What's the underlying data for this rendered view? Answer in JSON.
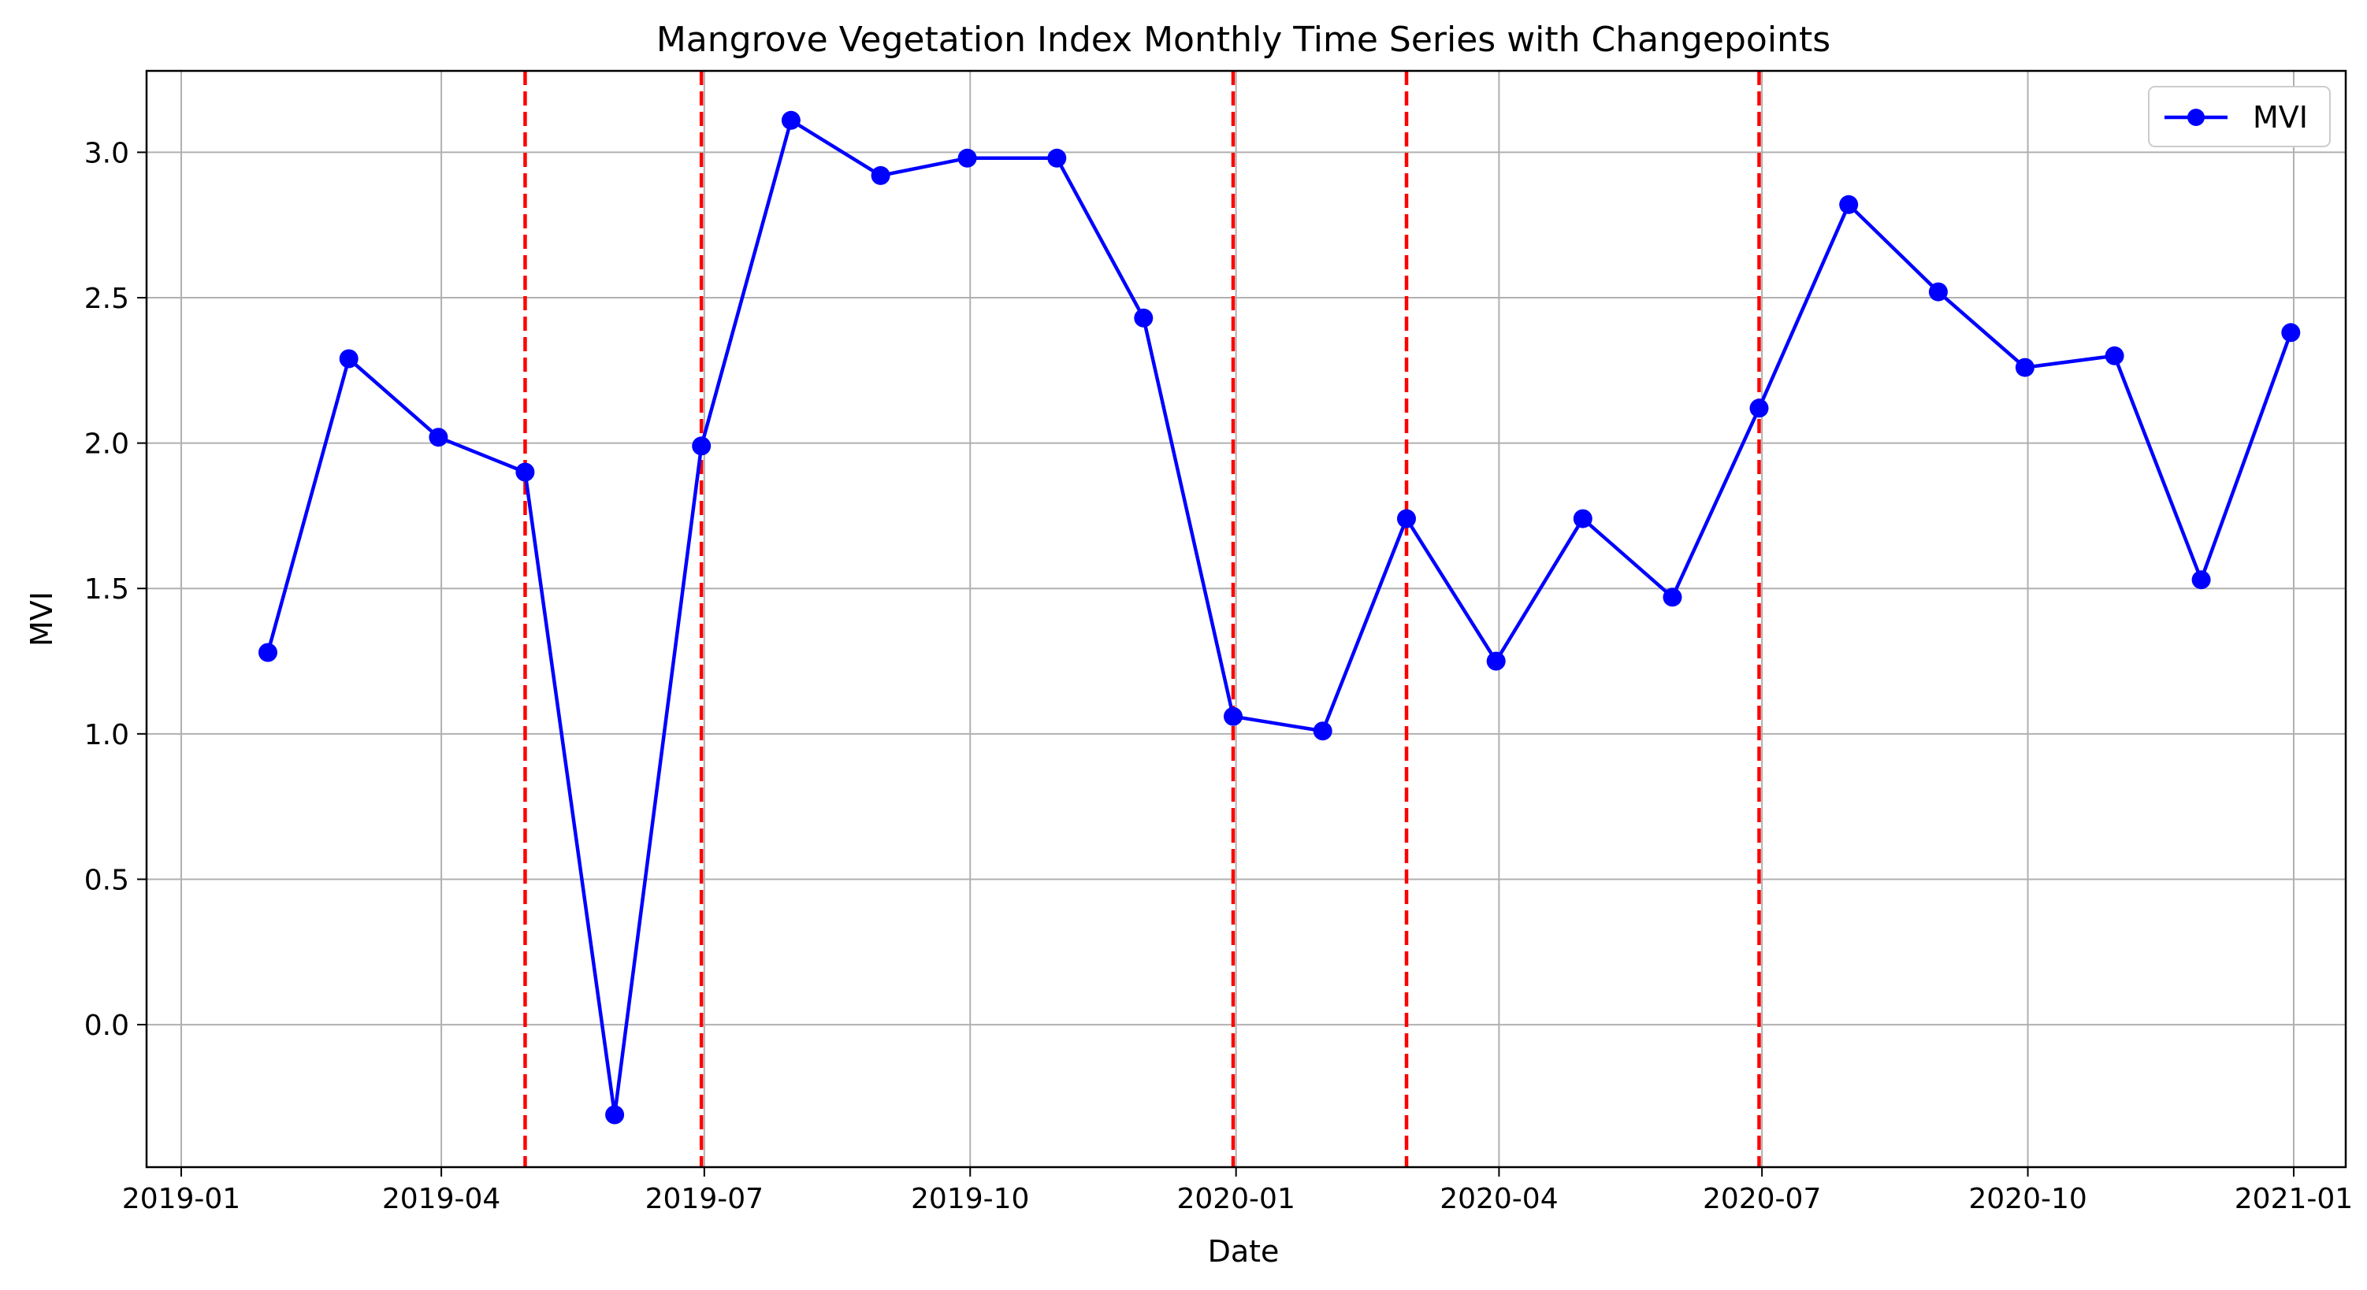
{
  "chart_data": {
    "type": "line",
    "title": "Mangrove Vegetation Index Monthly Time Series with Changepoints",
    "xlabel": "Date",
    "ylabel": "MVI",
    "xlim": [
      "2018-12-20",
      "2021-01-19"
    ],
    "ylim": [
      -0.49,
      3.28
    ],
    "x_ticks": [
      "2019-01",
      "2019-04",
      "2019-07",
      "2019-10",
      "2020-01",
      "2020-04",
      "2020-07",
      "2020-10",
      "2021-01"
    ],
    "y_ticks": [
      0.0,
      0.5,
      1.0,
      1.5,
      2.0,
      2.5,
      3.0
    ],
    "y_tick_labels": [
      "0.0",
      "0.5",
      "1.0",
      "1.5",
      "2.0",
      "2.5",
      "3.0"
    ],
    "grid": true,
    "legend_position": "top-right",
    "series": [
      {
        "name": "MVI",
        "color": "#0000ff",
        "marker": "circle",
        "x": [
          "2019-01-31",
          "2019-02-28",
          "2019-03-31",
          "2019-04-30",
          "2019-05-31",
          "2019-06-30",
          "2019-07-31",
          "2019-08-31",
          "2019-09-30",
          "2019-10-31",
          "2019-11-30",
          "2019-12-31",
          "2020-01-31",
          "2020-02-29",
          "2020-03-31",
          "2020-04-30",
          "2020-05-31",
          "2020-06-30",
          "2020-07-31",
          "2020-08-31",
          "2020-09-30",
          "2020-10-31",
          "2020-11-30",
          "2020-12-31"
        ],
        "values": [
          1.28,
          2.29,
          2.02,
          1.9,
          -0.31,
          1.99,
          3.11,
          2.92,
          2.98,
          2.98,
          2.43,
          1.06,
          1.01,
          1.74,
          1.25,
          1.74,
          1.47,
          2.12,
          2.82,
          2.52,
          2.26,
          2.3,
          1.53,
          2.38
        ]
      }
    ],
    "changepoints": {
      "color": "#ff0000",
      "style": "dashed",
      "x": [
        "2019-04-30",
        "2019-06-30",
        "2019-12-31",
        "2020-02-29",
        "2020-06-30"
      ]
    }
  }
}
